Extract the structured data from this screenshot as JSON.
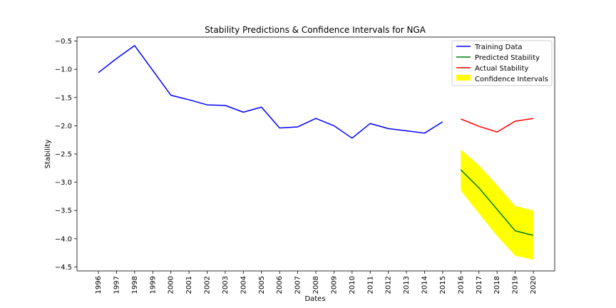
{
  "chart_data": {
    "type": "line",
    "title": "Stability Predictions & Confidence Intervals for NGA",
    "xlabel": "Dates",
    "ylabel": "Stability",
    "x_categories": [
      "1996",
      "1997",
      "1998",
      "1999",
      "2000",
      "2001",
      "2002",
      "2003",
      "2004",
      "2005",
      "2006",
      "2007",
      "2008",
      "2009",
      "2010",
      "2011",
      "2012",
      "2013",
      "2014",
      "2015",
      "2016",
      "2017",
      "2018",
      "2019",
      "2020"
    ],
    "ylim": [
      -4.57,
      -0.43
    ],
    "y_ticks": [
      -0.5,
      -1.0,
      -1.5,
      -2.0,
      -2.5,
      -3.0,
      -3.5,
      -4.0,
      -4.5
    ],
    "y_tick_labels": [
      "−0.5",
      "−1.0",
      "−1.5",
      "−2.0",
      "−2.5",
      "−3.0",
      "−3.5",
      "−4.0",
      "−4.5"
    ],
    "grid": false,
    "legend_position": "top-right",
    "series": [
      {
        "name": "Training Data",
        "color": "#0000ff",
        "x": [
          "1996",
          "1997",
          "1998",
          "1999",
          "2000",
          "2001",
          "2002",
          "2003",
          "2004",
          "2005",
          "2006",
          "2007",
          "2008",
          "2009",
          "2010",
          "2011",
          "2012",
          "2013",
          "2014",
          "2015"
        ],
        "values": [
          -1.06,
          -0.81,
          -0.58,
          -1.02,
          -1.46,
          -1.54,
          -1.63,
          -1.64,
          -1.76,
          -1.67,
          -2.04,
          -2.02,
          -1.87,
          -2.0,
          -2.22,
          -1.96,
          -2.05,
          -2.09,
          -2.13,
          -1.93
        ]
      },
      {
        "name": "Predicted Stability",
        "color": "#008000",
        "x": [
          "2016",
          "2017",
          "2018",
          "2019",
          "2020"
        ],
        "values": [
          -2.78,
          -3.1,
          -3.48,
          -3.86,
          -3.94
        ]
      },
      {
        "name": "Actual Stability",
        "color": "#ff0000",
        "x": [
          "2016",
          "2017",
          "2018",
          "2019",
          "2020"
        ],
        "values": [
          -1.88,
          -2.01,
          -2.11,
          -1.92,
          -1.87
        ]
      }
    ],
    "confidence_interval": {
      "name": "Confidence Intervals",
      "color": "#ffff00",
      "x": [
        "2016",
        "2017",
        "2018",
        "2019",
        "2020"
      ],
      "upper": [
        -2.42,
        -2.7,
        -3.05,
        -3.42,
        -3.5
      ],
      "lower": [
        -3.15,
        -3.55,
        -3.95,
        -4.3,
        -4.37
      ]
    }
  }
}
